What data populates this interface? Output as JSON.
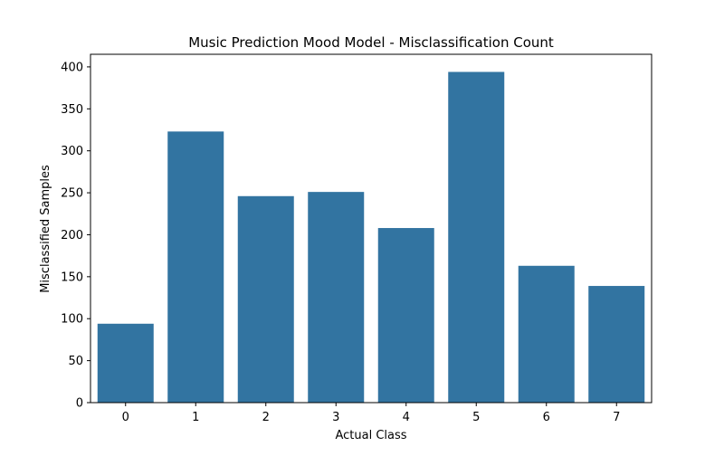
{
  "chart_data": {
    "type": "bar",
    "title": "Music Prediction Mood Model - Misclassification Count",
    "xlabel": "Actual Class",
    "ylabel": "Misclassified Samples",
    "categories": [
      "0",
      "1",
      "2",
      "3",
      "4",
      "5",
      "6",
      "7"
    ],
    "values": [
      94,
      323,
      246,
      251,
      208,
      394,
      163,
      139
    ],
    "ylim": [
      0,
      415
    ],
    "yticks": [
      0,
      50,
      100,
      150,
      200,
      250,
      300,
      350,
      400
    ],
    "grid": false,
    "legend": "none",
    "bar_color": "#3274a1"
  }
}
